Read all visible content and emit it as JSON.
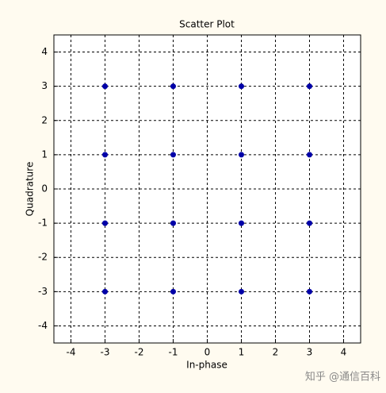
{
  "chart_data": {
    "type": "scatter",
    "title": "Scatter Plot",
    "x_label": "In-phase",
    "y_label": "Quadrature",
    "x": [
      -3,
      -1,
      1,
      3,
      -3,
      -1,
      1,
      3,
      -3,
      -1,
      1,
      3,
      -3,
      -1,
      1,
      3
    ],
    "y": [
      3,
      3,
      3,
      3,
      1,
      1,
      1,
      1,
      -1,
      -1,
      -1,
      -1,
      -3,
      -3,
      -3,
      -3
    ],
    "color": "#0000a8",
    "xlim": [
      -4.5,
      4.5
    ],
    "ylim": [
      -4.5,
      4.5
    ],
    "xticks": [
      -4,
      -3,
      -2,
      -1,
      0,
      1,
      2,
      3,
      4
    ],
    "yticks": [
      -4,
      -3,
      -2,
      -1,
      0,
      1,
      2,
      3,
      4
    ],
    "grid": true
  },
  "watermark": "知乎 @通信百科"
}
